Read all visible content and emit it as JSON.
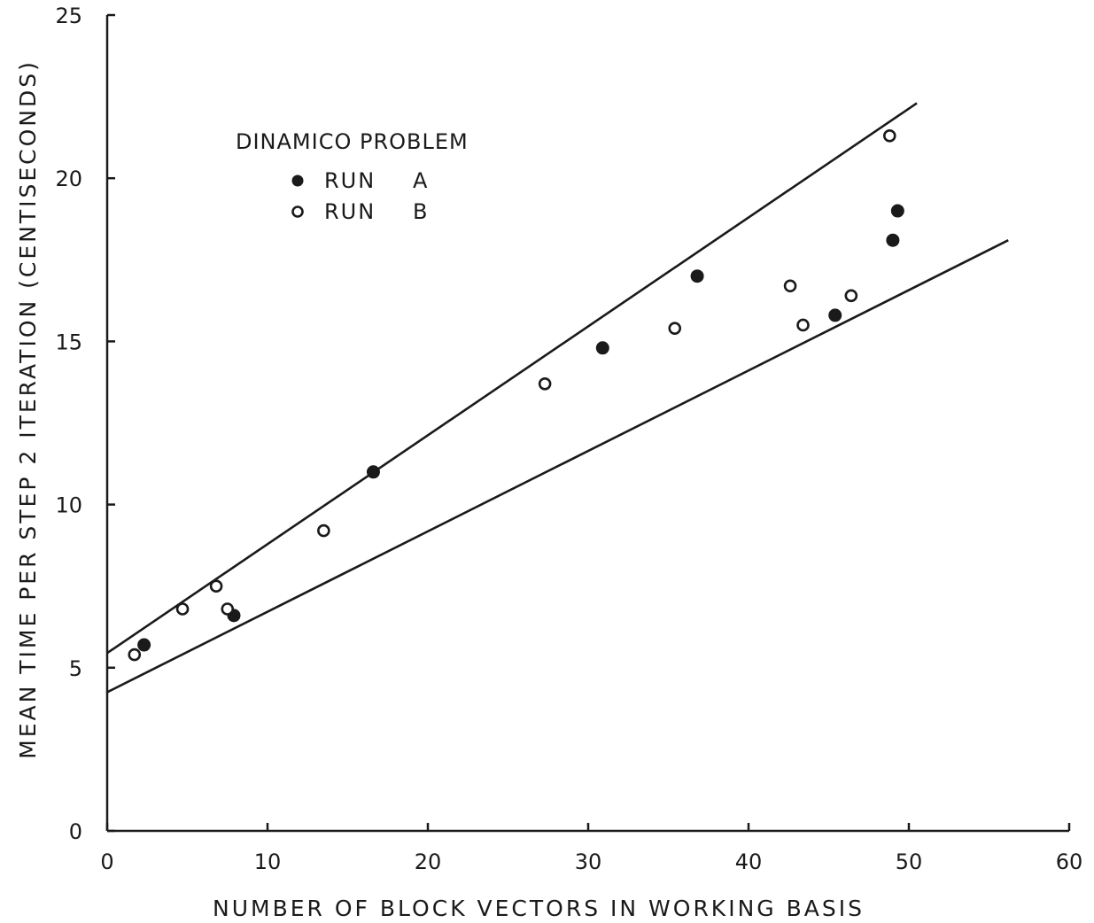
{
  "chart_data": {
    "type": "scatter",
    "xlabel": "NUMBER  OF BLOCK  VECTORS  IN WORKING  BASIS",
    "ylabel": "MEAN  TIME  PER  STEP  2 ITERATION   (CENTISECONDS)",
    "xlim": [
      0,
      60
    ],
    "ylim": [
      0,
      25
    ],
    "xticks": [
      "0",
      "10",
      "20",
      "30",
      "40",
      "50",
      "60"
    ],
    "yticks": [
      "0",
      "5",
      "10",
      "15",
      "20",
      "25"
    ],
    "grid": false,
    "legend": {
      "title": "DINAMICO  PROBLEM",
      "placement": "upper-left",
      "entries": [
        {
          "marker": "filled-circle",
          "label": "RUN",
          "key": "A"
        },
        {
          "marker": "open-circle",
          "label": "RUN",
          "key": "B"
        }
      ]
    },
    "series": [
      {
        "name": "RUN A",
        "marker": "filled-circle",
        "points": [
          [
            2.3,
            5.7
          ],
          [
            7.9,
            6.6
          ],
          [
            16.6,
            11.0
          ],
          [
            30.9,
            14.8
          ],
          [
            36.8,
            17.0
          ],
          [
            45.4,
            15.8
          ],
          [
            49.0,
            18.1
          ],
          [
            49.3,
            19.0
          ]
        ]
      },
      {
        "name": "RUN B",
        "marker": "open-circle",
        "points": [
          [
            1.7,
            5.4
          ],
          [
            4.7,
            6.8
          ],
          [
            6.8,
            7.5
          ],
          [
            7.5,
            6.8
          ],
          [
            13.5,
            9.2
          ],
          [
            27.3,
            13.7
          ],
          [
            35.4,
            15.4
          ],
          [
            42.6,
            16.7
          ],
          [
            43.4,
            15.5
          ],
          [
            46.4,
            16.4
          ],
          [
            48.8,
            21.3
          ]
        ]
      }
    ],
    "lines": [
      {
        "from": [
          0,
          5.45
        ],
        "to": [
          50.5,
          22.3
        ]
      },
      {
        "from": [
          0,
          4.25
        ],
        "to": [
          56.2,
          18.1
        ]
      }
    ]
  }
}
